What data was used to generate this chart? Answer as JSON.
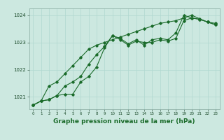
{
  "bg_color": "#cce8e0",
  "grid_color": "#b0d8d0",
  "line_color": "#1a6b2a",
  "marker_color": "#1a6b2a",
  "xlabel": "Graphe pression niveau de la mer (hPa)",
  "xlabel_fontsize": 6.5,
  "ylabel_ticks": [
    1021,
    1022,
    1023,
    1024
  ],
  "xlim": [
    -0.5,
    23.5
  ],
  "ylim": [
    1020.55,
    1024.25
  ],
  "x_ticks": [
    0,
    1,
    2,
    3,
    4,
    5,
    6,
    7,
    8,
    9,
    10,
    11,
    12,
    13,
    14,
    15,
    16,
    17,
    18,
    19,
    20,
    21,
    22,
    23
  ],
  "series1": {
    "x": [
      0,
      1,
      2,
      3,
      4,
      5,
      6,
      7,
      8,
      9,
      10,
      11,
      12,
      13,
      14,
      15,
      16,
      17,
      18,
      19,
      20,
      21,
      22,
      23
    ],
    "y": [
      1020.7,
      1020.85,
      1020.9,
      1021.05,
      1021.1,
      1021.1,
      1021.55,
      1021.75,
      1022.1,
      1022.8,
      1023.25,
      1023.1,
      1022.9,
      1023.05,
      1023.0,
      1023.0,
      1023.1,
      1023.05,
      1023.15,
      1023.8,
      1023.9,
      1023.85,
      1023.75,
      1023.7
    ]
  },
  "series2": {
    "x": [
      0,
      1,
      2,
      3,
      4,
      5,
      6,
      7,
      8,
      9,
      10,
      11,
      12,
      13,
      14,
      15,
      16,
      17,
      18,
      19,
      20,
      21,
      22,
      23
    ],
    "y": [
      1020.7,
      1020.85,
      1021.4,
      1021.55,
      1021.85,
      1022.15,
      1022.45,
      1022.75,
      1022.9,
      1023.0,
      1023.1,
      1023.2,
      1023.3,
      1023.4,
      1023.5,
      1023.6,
      1023.7,
      1023.75,
      1023.8,
      1023.9,
      1024.0,
      1023.87,
      1023.75,
      1023.65
    ]
  },
  "series3": {
    "x": [
      0,
      1,
      2,
      3,
      4,
      5,
      6,
      7,
      8,
      9,
      10,
      11,
      12,
      13,
      14,
      15,
      16,
      17,
      18,
      19,
      20,
      21,
      22,
      23
    ],
    "y": [
      1020.7,
      1020.85,
      1020.9,
      1021.05,
      1021.4,
      1021.55,
      1021.75,
      1022.2,
      1022.55,
      1022.85,
      1023.25,
      1023.15,
      1022.95,
      1023.1,
      1022.9,
      1023.1,
      1023.15,
      1023.1,
      1023.35,
      1024.0,
      1023.9,
      1023.85,
      1023.75,
      1023.65
    ]
  }
}
